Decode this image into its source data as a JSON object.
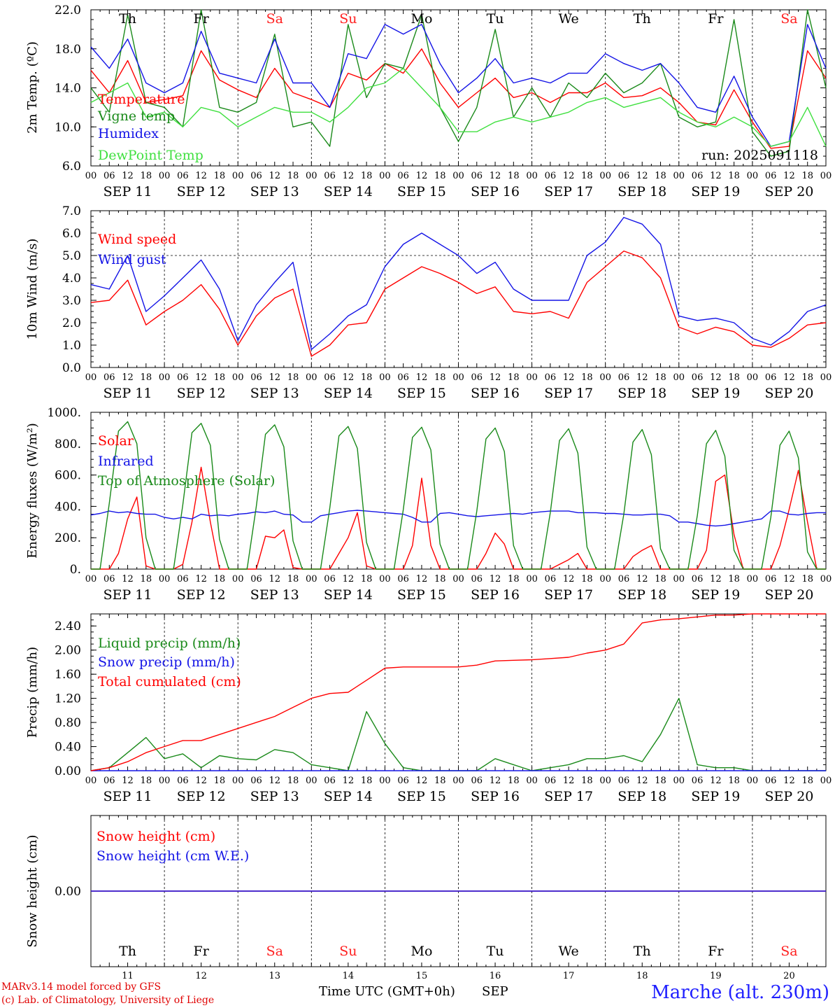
{
  "run_label": "run: 2025091118",
  "day_abbrevs": [
    "Th",
    "Fr",
    "Sa",
    "Su",
    "Mo",
    "Tu",
    "We",
    "Th",
    "Fr",
    "Sa"
  ],
  "weekend_flags": [
    false,
    false,
    true,
    true,
    false,
    false,
    false,
    false,
    false,
    true
  ],
  "date_labels": [
    "SEP 11",
    "SEP 12",
    "SEP 13",
    "SEP 14",
    "SEP 15",
    "SEP 16",
    "SEP 17",
    "SEP 18",
    "SEP 19",
    "SEP 20"
  ],
  "day_numbers": [
    "11",
    "12",
    "13",
    "14",
    "15",
    "16",
    "17",
    "18",
    "19",
    "20"
  ],
  "hour_ticks": [
    "00",
    "06",
    "12",
    "18"
  ],
  "final_tick": "00",
  "colors": {
    "red": "#ff0000",
    "darkgreen": "#1a8a1a",
    "blue": "#1414e6",
    "lightgreen": "#40e040",
    "weekend": "#ff2020"
  },
  "footer": {
    "model": "MARv3.14 model forced by GFS",
    "lab": "(c) Lab. of Climatology, University of Liege",
    "time_axis": "Time UTC (GMT+0h)",
    "month": "SEP",
    "station": "Marche (alt. 230m)"
  },
  "chart_data": [
    {
      "type": "line",
      "ylabel": "2m Temp. (ºC)",
      "ylim": [
        6,
        22
      ],
      "yticks": [
        "6.0",
        "10.0",
        "14.0",
        "18.0",
        "22.0"
      ],
      "grid": "daily dashed verticals",
      "legend_position": "top-left",
      "x_hours_since_sep11_00": [
        0,
        6,
        12,
        18,
        24,
        30,
        36,
        42,
        48,
        54,
        60,
        66,
        72,
        78,
        84,
        90,
        96,
        102,
        108,
        114,
        120,
        126,
        132,
        138,
        144,
        150,
        156,
        162,
        168,
        174,
        180,
        186,
        192,
        198,
        204,
        210,
        216,
        222,
        228,
        234,
        240
      ],
      "series": [
        {
          "name": "Temperature",
          "color": "#ff0000",
          "values": [
            15.8,
            13.5,
            16.8,
            12.5,
            12.8,
            13.2,
            17.8,
            14.8,
            13.8,
            13.0,
            16.0,
            13.5,
            12.8,
            12.0,
            15.5,
            14.8,
            16.5,
            15.5,
            18.0,
            14.5,
            12.0,
            13.5,
            15.0,
            13.0,
            13.5,
            12.5,
            13.5,
            13.5,
            14.5,
            13.0,
            13.2,
            14.0,
            12.5,
            10.5,
            10.2,
            13.8,
            10.5,
            7.8,
            8.0,
            17.8,
            15.0
          ]
        },
        {
          "name": "Vigne temp",
          "color": "#1a8a1a",
          "values": [
            14.0,
            11.5,
            21.5,
            12.5,
            12.0,
            10.0,
            22.0,
            12.0,
            11.5,
            12.5,
            19.5,
            10.0,
            10.5,
            8.0,
            20.5,
            13.0,
            16.5,
            16.0,
            21.5,
            12.0,
            8.5,
            12.0,
            20.0,
            11.0,
            14.0,
            11.0,
            14.5,
            13.0,
            15.5,
            13.5,
            14.5,
            16.5,
            11.0,
            10.0,
            10.5,
            21.0,
            9.5,
            7.0,
            7.5,
            22.0,
            14.0
          ]
        },
        {
          "name": "Humidex",
          "color": "#1414e6",
          "values": [
            18.2,
            16.0,
            19.0,
            14.5,
            13.5,
            14.5,
            19.8,
            15.5,
            15.0,
            14.5,
            19.0,
            14.5,
            14.5,
            12.0,
            17.5,
            17.0,
            20.5,
            19.5,
            20.5,
            16.5,
            13.5,
            15.0,
            17.0,
            14.5,
            15.0,
            14.5,
            15.5,
            15.5,
            17.5,
            16.5,
            15.8,
            16.5,
            14.5,
            12.0,
            11.5,
            15.2,
            11.0,
            8.0,
            8.5,
            20.5,
            16.0
          ]
        },
        {
          "name": "DewPoint Temp",
          "color": "#40e040",
          "values": [
            12.5,
            13.5,
            14.5,
            11.0,
            11.5,
            10.0,
            12.0,
            11.5,
            10.0,
            11.0,
            12.0,
            11.5,
            11.5,
            10.5,
            12.0,
            14.0,
            14.5,
            16.0,
            14.0,
            12.0,
            9.5,
            9.5,
            10.5,
            11.0,
            10.5,
            11.0,
            11.5,
            12.5,
            13.0,
            12.0,
            12.5,
            13.0,
            11.5,
            10.5,
            10.0,
            11.0,
            10.0,
            8.0,
            8.5,
            12.0,
            8.0
          ]
        }
      ]
    },
    {
      "type": "line",
      "ylabel": "10m Wind (m/s)",
      "ylim": [
        0,
        7
      ],
      "yticks": [
        "0.0",
        "1.0",
        "2.0",
        "3.0",
        "4.0",
        "5.0",
        "6.0",
        "7.0"
      ],
      "reference_line": 5.0,
      "legend_position": "top-left",
      "x_hours_since_sep11_00": [
        0,
        6,
        12,
        18,
        24,
        30,
        36,
        42,
        48,
        54,
        60,
        66,
        72,
        78,
        84,
        90,
        96,
        102,
        108,
        114,
        120,
        126,
        132,
        138,
        144,
        150,
        156,
        162,
        168,
        174,
        180,
        186,
        192,
        198,
        204,
        210,
        216,
        222,
        228,
        234,
        240
      ],
      "series": [
        {
          "name": "Wind speed",
          "color": "#ff0000",
          "values": [
            2.9,
            3.0,
            3.9,
            1.9,
            2.5,
            3.0,
            3.7,
            2.6,
            1.0,
            2.3,
            3.1,
            3.5,
            0.5,
            1.0,
            1.9,
            2.0,
            3.5,
            4.0,
            4.5,
            4.2,
            3.8,
            3.3,
            3.6,
            2.5,
            2.4,
            2.5,
            2.2,
            3.8,
            4.5,
            5.2,
            4.9,
            4.0,
            1.8,
            1.5,
            1.8,
            1.6,
            1.0,
            0.9,
            1.3,
            1.9,
            2.0
          ]
        },
        {
          "name": "Wind gust",
          "color": "#1414e6",
          "values": [
            3.7,
            3.5,
            5.0,
            2.5,
            3.2,
            4.0,
            4.8,
            3.5,
            1.2,
            2.8,
            3.8,
            4.7,
            0.8,
            1.5,
            2.3,
            2.8,
            4.5,
            5.5,
            6.0,
            5.5,
            5.0,
            4.2,
            4.7,
            3.5,
            3.0,
            3.0,
            3.0,
            5.0,
            5.6,
            6.7,
            6.4,
            5.5,
            2.3,
            2.1,
            2.2,
            2.0,
            1.3,
            1.0,
            1.6,
            2.5,
            2.8
          ]
        }
      ]
    },
    {
      "type": "line",
      "ylabel": "Energy fluxes (W/m²)",
      "ylim": [
        0,
        1000
      ],
      "yticks": [
        "0.",
        "200.",
        "400.",
        "600.",
        "800.",
        "1000."
      ],
      "legend_position": "top-left",
      "x_hours_since_sep11_00": [
        0,
        3,
        6,
        9,
        12,
        15,
        18,
        21,
        24,
        27,
        30,
        33,
        36,
        39,
        42,
        45,
        48,
        51,
        54,
        57,
        60,
        63,
        66,
        69,
        72,
        75,
        78,
        81,
        84,
        87,
        90,
        93,
        96,
        99,
        102,
        105,
        108,
        111,
        114,
        117,
        120,
        123,
        126,
        129,
        132,
        135,
        138,
        141,
        144,
        147,
        150,
        153,
        156,
        159,
        162,
        165,
        168,
        171,
        174,
        177,
        180,
        183,
        186,
        189,
        192,
        195,
        198,
        201,
        204,
        207,
        210,
        213,
        216,
        219,
        222,
        225,
        228,
        231,
        234,
        237,
        240
      ],
      "series": [
        {
          "name": "Solar",
          "color": "#ff0000",
          "values": [
            0,
            0,
            0,
            100,
            320,
            460,
            20,
            0,
            0,
            0,
            30,
            300,
            650,
            300,
            0,
            0,
            0,
            0,
            0,
            210,
            200,
            250,
            10,
            0,
            0,
            0,
            0,
            100,
            200,
            360,
            20,
            0,
            0,
            0,
            0,
            150,
            580,
            150,
            0,
            0,
            0,
            0,
            0,
            100,
            230,
            160,
            0,
            0,
            0,
            0,
            0,
            30,
            60,
            100,
            0,
            0,
            0,
            0,
            0,
            80,
            120,
            150,
            0,
            0,
            0,
            0,
            0,
            120,
            560,
            600,
            220,
            0,
            0,
            0,
            0,
            150,
            380,
            630,
            300,
            0,
            0
          ]
        },
        {
          "name": "Infrared",
          "color": "#1414e6",
          "values": [
            345,
            355,
            370,
            360,
            365,
            355,
            350,
            350,
            330,
            320,
            330,
            320,
            350,
            340,
            345,
            340,
            350,
            355,
            365,
            360,
            370,
            350,
            345,
            300,
            300,
            340,
            350,
            360,
            370,
            375,
            370,
            365,
            360,
            355,
            350,
            330,
            300,
            300,
            355,
            360,
            350,
            340,
            335,
            340,
            345,
            350,
            355,
            350,
            360,
            365,
            370,
            370,
            370,
            360,
            360,
            360,
            355,
            355,
            350,
            345,
            345,
            350,
            350,
            340,
            300,
            300,
            290,
            280,
            275,
            280,
            290,
            300,
            310,
            320,
            370,
            370,
            350,
            345,
            355,
            360,
            360
          ]
        },
        {
          "name": "Top of Atmosphere (Solar)",
          "color": "#1a8a1a",
          "values": [
            0,
            0,
            420,
            880,
            940,
            800,
            200,
            0,
            0,
            0,
            410,
            870,
            930,
            790,
            190,
            0,
            0,
            0,
            400,
            860,
            920,
            780,
            180,
            0,
            0,
            0,
            390,
            850,
            910,
            770,
            170,
            0,
            0,
            0,
            380,
            840,
            905,
            760,
            160,
            0,
            0,
            0,
            370,
            830,
            900,
            750,
            150,
            0,
            0,
            0,
            360,
            820,
            895,
            740,
            140,
            0,
            0,
            0,
            350,
            810,
            890,
            730,
            130,
            0,
            0,
            0,
            340,
            800,
            885,
            720,
            120,
            0,
            0,
            0,
            330,
            790,
            880,
            710,
            110,
            0,
            0
          ]
        }
      ]
    },
    {
      "type": "line",
      "ylabel": "Precip (mm/h)",
      "ylim": [
        0,
        2.6
      ],
      "yticks": [
        "0.00",
        "0.40",
        "0.80",
        "1.20",
        "1.60",
        "2.00",
        "2.40"
      ],
      "legend_position": "top-left",
      "x_hours_since_sep11_00": [
        0,
        6,
        12,
        18,
        24,
        30,
        36,
        42,
        48,
        54,
        60,
        66,
        72,
        78,
        84,
        90,
        96,
        102,
        108,
        114,
        120,
        126,
        132,
        138,
        144,
        150,
        156,
        162,
        168,
        174,
        180,
        186,
        192,
        198,
        204,
        210,
        216,
        222,
        228,
        234,
        240
      ],
      "series": [
        {
          "name": "Liquid precip (mm/h)",
          "color": "#1a8a1a",
          "values": [
            0.0,
            0.05,
            0.3,
            0.55,
            0.2,
            0.28,
            0.05,
            0.25,
            0.2,
            0.18,
            0.35,
            0.3,
            0.1,
            0.05,
            0.0,
            0.98,
            0.45,
            0.05,
            0.0,
            0.0,
            0.0,
            0.0,
            0.2,
            0.1,
            0.0,
            0.05,
            0.1,
            0.2,
            0.2,
            0.25,
            0.15,
            0.6,
            1.2,
            0.1,
            0.05,
            0.05,
            0.0,
            0.0,
            0.0,
            0.0,
            0.0
          ]
        },
        {
          "name": "Snow precip (mm/h)",
          "color": "#1414e6",
          "values": [
            0,
            0,
            0,
            0,
            0,
            0,
            0,
            0,
            0,
            0,
            0,
            0,
            0,
            0,
            0,
            0,
            0,
            0,
            0,
            0,
            0,
            0,
            0,
            0,
            0,
            0,
            0,
            0,
            0,
            0,
            0,
            0,
            0,
            0,
            0,
            0,
            0,
            0,
            0,
            0,
            0
          ]
        },
        {
          "name": "Total cumulated (cm)",
          "color": "#ff0000",
          "values": [
            0.0,
            0.05,
            0.15,
            0.3,
            0.4,
            0.5,
            0.5,
            0.6,
            0.7,
            0.8,
            0.9,
            1.05,
            1.2,
            1.28,
            1.3,
            1.5,
            1.7,
            1.72,
            1.72,
            1.72,
            1.72,
            1.75,
            1.82,
            1.83,
            1.84,
            1.86,
            1.88,
            1.95,
            2.0,
            2.1,
            2.45,
            2.5,
            2.52,
            2.55,
            2.58,
            2.58,
            2.6,
            2.6,
            2.6,
            2.6,
            2.6
          ]
        }
      ]
    },
    {
      "type": "line",
      "ylabel": "Snow height (cm)",
      "ylim": [
        -1,
        1
      ],
      "yticks": [
        "0.00"
      ],
      "legend_position": "top-left",
      "x_hours_since_sep11_00": [
        0,
        240
      ],
      "series": [
        {
          "name": "Snow height (cm)",
          "color": "#ff0000",
          "values": [
            0,
            0
          ]
        },
        {
          "name": "Snow height (cm W.E.)",
          "color": "#1414e6",
          "values": [
            0,
            0
          ]
        }
      ]
    }
  ]
}
